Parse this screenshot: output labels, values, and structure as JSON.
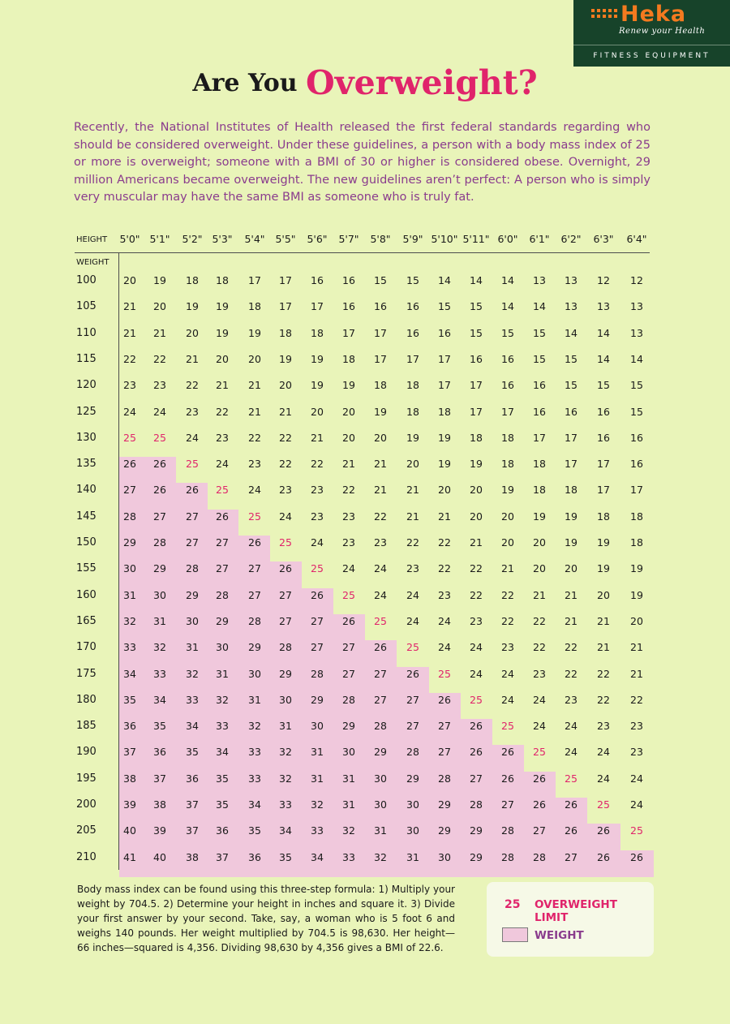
{
  "logo": {
    "brand": "Heka",
    "tagline": "Renew your Health",
    "sub": "FITNESS EQUIPMENT",
    "brand_color": "#f47a1f",
    "bg_color": "#17432a"
  },
  "title": {
    "part1": "Are You ",
    "part2": "Overweight?"
  },
  "intro": "Recently, the National Institutes of Health released the first federal standards regarding who should be considered overweight. Under these guidelines, a person with a body mass index of 25 or more is overweight; someone with a BMI of 30 or higher is considered obese. Overnight, 29 million Americans became overweight. The new guidelines aren’t perfect: A person who is simply very muscular may have the same BMI as someone who is truly fat.",
  "table": {
    "height_label": "HEIGHT",
    "weight_label": "WEIGHT",
    "heights": [
      "5'0\"",
      "5'1\"",
      "5'2\"",
      "5'3\"",
      "5'4\"",
      "5'5\"",
      "5'6\"",
      "5'7\"",
      "5'8\"",
      "5'9\"",
      "5'10\"",
      "5'11\"",
      "6'0\"",
      "6'1\"",
      "6'2\"",
      "6'3\"",
      "6'4\""
    ],
    "weights": [
      "100",
      "105",
      "110",
      "115",
      "120",
      "125",
      "130",
      "135",
      "140",
      "145",
      "150",
      "155",
      "160",
      "165",
      "170",
      "175",
      "180",
      "185",
      "190",
      "195",
      "200",
      "205",
      "210"
    ],
    "rows": [
      [
        "20",
        "19",
        "18",
        "18",
        "17",
        "17",
        "16",
        "16",
        "15",
        "15",
        "14",
        "14",
        "14",
        "13",
        "13",
        "12",
        "12"
      ],
      [
        "21",
        "20",
        "19",
        "19",
        "18",
        "17",
        "17",
        "16",
        "16",
        "16",
        "15",
        "15",
        "14",
        "14",
        "13",
        "13",
        "13"
      ],
      [
        "21",
        "21",
        "20",
        "19",
        "19",
        "18",
        "18",
        "17",
        "17",
        "16",
        "16",
        "15",
        "15",
        "15",
        "14",
        "14",
        "13"
      ],
      [
        "22",
        "22",
        "21",
        "20",
        "20",
        "19",
        "19",
        "18",
        "17",
        "17",
        "17",
        "16",
        "16",
        "15",
        "15",
        "14",
        "14"
      ],
      [
        "23",
        "23",
        "22",
        "21",
        "21",
        "20",
        "19",
        "19",
        "18",
        "18",
        "17",
        "17",
        "16",
        "16",
        "15",
        "15",
        "15"
      ],
      [
        "24",
        "24",
        "23",
        "22",
        "21",
        "21",
        "20",
        "20",
        "19",
        "18",
        "18",
        "17",
        "17",
        "16",
        "16",
        "16",
        "15"
      ],
      [
        "25",
        "25",
        "24",
        "23",
        "22",
        "22",
        "21",
        "20",
        "20",
        "19",
        "19",
        "18",
        "18",
        "17",
        "17",
        "16",
        "16"
      ],
      [
        "26",
        "26",
        "25",
        "24",
        "23",
        "22",
        "22",
        "21",
        "21",
        "20",
        "19",
        "19",
        "18",
        "18",
        "17",
        "17",
        "16"
      ],
      [
        "27",
        "26",
        "26",
        "25",
        "24",
        "23",
        "23",
        "22",
        "21",
        "21",
        "20",
        "20",
        "19",
        "18",
        "18",
        "17",
        "17"
      ],
      [
        "28",
        "27",
        "27",
        "26",
        "25",
        "24",
        "23",
        "23",
        "22",
        "21",
        "21",
        "20",
        "20",
        "19",
        "19",
        "18",
        "18"
      ],
      [
        "29",
        "28",
        "27",
        "27",
        "26",
        "25",
        "24",
        "23",
        "23",
        "22",
        "22",
        "21",
        "20",
        "20",
        "19",
        "19",
        "18"
      ],
      [
        "30",
        "29",
        "28",
        "27",
        "27",
        "26",
        "25",
        "24",
        "24",
        "23",
        "22",
        "22",
        "21",
        "20",
        "20",
        "19",
        "19"
      ],
      [
        "31",
        "30",
        "29",
        "28",
        "27",
        "27",
        "26",
        "25",
        "24",
        "24",
        "23",
        "22",
        "22",
        "21",
        "21",
        "20",
        "19"
      ],
      [
        "32",
        "31",
        "30",
        "29",
        "28",
        "27",
        "27",
        "26",
        "25",
        "24",
        "24",
        "23",
        "22",
        "22",
        "21",
        "21",
        "20"
      ],
      [
        "33",
        "32",
        "31",
        "30",
        "29",
        "28",
        "27",
        "27",
        "26",
        "25",
        "24",
        "24",
        "23",
        "22",
        "22",
        "21",
        "21"
      ],
      [
        "34",
        "33",
        "32",
        "31",
        "30",
        "29",
        "28",
        "27",
        "27",
        "26",
        "25",
        "24",
        "24",
        "23",
        "22",
        "22",
        "21"
      ],
      [
        "35",
        "34",
        "33",
        "32",
        "31",
        "30",
        "29",
        "28",
        "27",
        "27",
        "26",
        "25",
        "24",
        "24",
        "23",
        "22",
        "22"
      ],
      [
        "36",
        "35",
        "34",
        "33",
        "32",
        "31",
        "30",
        "29",
        "28",
        "27",
        "27",
        "26",
        "25",
        "24",
        "24",
        "23",
        "23"
      ],
      [
        "37",
        "36",
        "35",
        "34",
        "33",
        "32",
        "31",
        "30",
        "29",
        "28",
        "27",
        "26",
        "26",
        "25",
        "24",
        "24",
        "23"
      ],
      [
        "38",
        "37",
        "36",
        "35",
        "33",
        "32",
        "31",
        "31",
        "30",
        "29",
        "28",
        "27",
        "26",
        "26",
        "25",
        "24",
        "24"
      ],
      [
        "39",
        "38",
        "37",
        "35",
        "34",
        "33",
        "32",
        "31",
        "30",
        "30",
        "29",
        "28",
        "27",
        "26",
        "26",
        "25",
        "24"
      ],
      [
        "40",
        "39",
        "37",
        "36",
        "35",
        "34",
        "33",
        "32",
        "31",
        "30",
        "29",
        "29",
        "28",
        "27",
        "26",
        "26",
        "25"
      ],
      [
        "41",
        "40",
        "38",
        "37",
        "36",
        "35",
        "34",
        "33",
        "32",
        "31",
        "30",
        "29",
        "28",
        "28",
        "27",
        "26",
        "26"
      ]
    ],
    "limit_value": "25",
    "limit_color": "#e0246b",
    "weight_shade_color": "#f0c8dc"
  },
  "formula": "Body mass index can be found using this three-step formula: 1) Multiply your weight by 704.5. 2) Determine your height in inches and square it. 3) Divide your first answer by your second. Take, say, a woman who is 5 foot 6 and weighs 140 pounds. Her weight multiplied by 704.5 is 98,630. Her height—66 inches—squared is 4,356. Dividing 98,630 by 4,356 gives a BMI of 22.6.",
  "legend": {
    "limit_number": "25",
    "limit_label": "OVERWEIGHT LIMIT",
    "weight_label": "WEIGHT"
  }
}
